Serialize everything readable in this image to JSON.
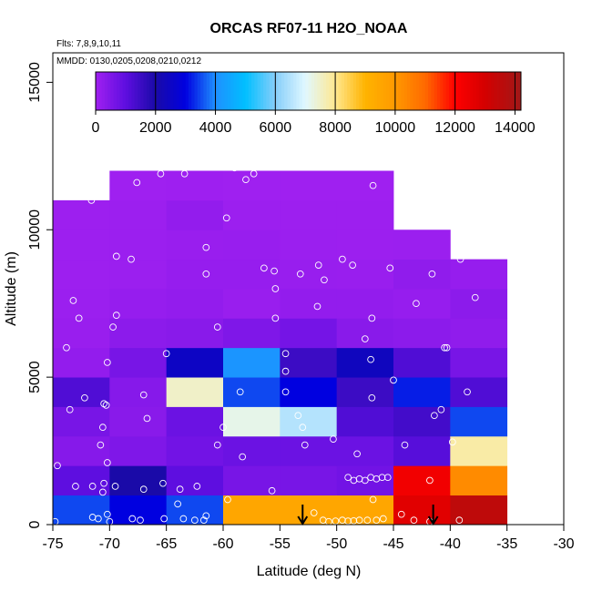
{
  "chart_data": {
    "type": "heatmap",
    "title": "ORCAS RF07-11 H2O_NOAA",
    "flights_note": "Flts: 7,8,9,10,11",
    "dates_note": "MMDD: 0130,0205,0208,0210,0212",
    "xlabel": "Latitude (deg N)",
    "ylabel": "Altitude (m)",
    "xlim": [
      -75,
      -30
    ],
    "ylim": [
      0,
      16000
    ],
    "x_ticks": [
      "-75",
      "-70",
      "-65",
      "-60",
      "-55",
      "-50",
      "-45",
      "-40",
      "-35",
      "-30"
    ],
    "y_ticks": [
      "0",
      "5000",
      "10000",
      "15000"
    ],
    "colorbar": {
      "range": [
        0,
        14200
      ],
      "ticks": [
        "0",
        "2000",
        "4000",
        "6000",
        "8000",
        "10000",
        "12000",
        "14000"
      ]
    },
    "bin_width_deg": 5,
    "bin_height_m": 1000,
    "x_bins": [
      -75,
      -70,
      -65,
      -60,
      -55,
      -50,
      -45,
      -40
    ],
    "columns": [
      [
        3500,
        1000,
        400,
        600,
        1200,
        200,
        100,
        80,
        50,
        50,
        50
      ],
      [
        3000,
        2000,
        500,
        350,
        400,
        600,
        300,
        150,
        80,
        80,
        60,
        20
      ],
      [
        3500,
        1000,
        700,
        800,
        7500,
        2500,
        350,
        200,
        150,
        100,
        200,
        30
      ],
      [
        9500,
        600,
        800,
        7200,
        3500,
        4100,
        500,
        100,
        150,
        120,
        60,
        20
      ],
      [
        9500,
        600,
        800,
        6500,
        3000,
        1500,
        650,
        200,
        120,
        80,
        50,
        20
      ],
      [
        9500,
        700,
        800,
        1200,
        1500,
        2400,
        350,
        200,
        110,
        60,
        50,
        10
      ],
      [
        12700,
        12300,
        1100,
        1400,
        3200,
        1200,
        300,
        150,
        250,
        80
      ],
      [
        13500,
        10300,
        7800,
        3500,
        1200,
        600,
        250,
        300,
        150
      ]
    ],
    "points": [
      [
        -74.8,
        100
      ],
      [
        -73,
        1300
      ],
      [
        -71.5,
        250
      ],
      [
        -71,
        200
      ],
      [
        -70.2,
        350
      ],
      [
        -70,
        100
      ],
      [
        -68,
        200
      ],
      [
        -67.3,
        150
      ],
      [
        -65.2,
        200
      ],
      [
        -64,
        700
      ],
      [
        -63.5,
        200
      ],
      [
        -62.5,
        150
      ],
      [
        -61.7,
        150
      ],
      [
        -61.5,
        300
      ],
      [
        -74.6,
        2000
      ],
      [
        -71.5,
        1300
      ],
      [
        -70.6,
        1100
      ],
      [
        -70.5,
        1400
      ],
      [
        -70.2,
        2100
      ],
      [
        -69.5,
        1300
      ],
      [
        -67,
        1200
      ],
      [
        -65.3,
        1400
      ],
      [
        -63.8,
        1200
      ],
      [
        -62.3,
        1300
      ],
      [
        -60.5,
        2700
      ],
      [
        -60,
        3300
      ],
      [
        -73.5,
        3900
      ],
      [
        -72.2,
        4300
      ],
      [
        -70.5,
        4100
      ],
      [
        -70.3,
        4050
      ],
      [
        -70.6,
        3300
      ],
      [
        -70.8,
        2700
      ],
      [
        -67,
        4400
      ],
      [
        -66.7,
        3600
      ],
      [
        -70.2,
        5500
      ],
      [
        -65,
        5800
      ],
      [
        -58.5,
        4500
      ],
      [
        -58.3,
        2300
      ],
      [
        -73.8,
        6000
      ],
      [
        -72.7,
        7000
      ],
      [
        -73.2,
        7600
      ],
      [
        -69.7,
        6700
      ],
      [
        -69.4,
        7100
      ],
      [
        -60.5,
        6700
      ],
      [
        -55.4,
        7000
      ],
      [
        -54.5,
        5800
      ],
      [
        -54.5,
        5200
      ],
      [
        -54.5,
        4500
      ],
      [
        -53.4,
        3700
      ],
      [
        -53,
        3300
      ],
      [
        -52.8,
        2700
      ],
      [
        -71.6,
        11000
      ],
      [
        -69.4,
        9100
      ],
      [
        -68.1,
        9000
      ],
      [
        -67.6,
        11600
      ],
      [
        -65.5,
        11900
      ],
      [
        -63.4,
        11900
      ],
      [
        -61.5,
        9400
      ],
      [
        -61.5,
        8500
      ],
      [
        -59,
        12100
      ],
      [
        -58,
        11700
      ],
      [
        -57.3,
        11900
      ],
      [
        -59.7,
        10400
      ],
      [
        -56.4,
        8700
      ],
      [
        -55.5,
        8600
      ],
      [
        -55.4,
        8000
      ],
      [
        -53.2,
        8500
      ],
      [
        -51.6,
        8800
      ],
      [
        -51.7,
        7400
      ],
      [
        -51.1,
        8300
      ],
      [
        -49.5,
        9000
      ],
      [
        -48.6,
        8800
      ],
      [
        -47.5,
        6300
      ],
      [
        -46.9,
        7000
      ],
      [
        -46.8,
        11500
      ],
      [
        -45.3,
        8700
      ],
      [
        -47,
        5600
      ],
      [
        -46.9,
        4300
      ],
      [
        -45,
        4900
      ],
      [
        -41.4,
        3700
      ],
      [
        -40.8,
        3900
      ],
      [
        -40.5,
        6000
      ],
      [
        -40.3,
        6000
      ],
      [
        -41.6,
        8500
      ],
      [
        -43,
        7500
      ],
      [
        -39.1,
        9000
      ],
      [
        -37.8,
        7700
      ],
      [
        -38.5,
        4500
      ],
      [
        -50.3,
        2900
      ],
      [
        -48.2,
        2400
      ],
      [
        -49,
        1600
      ],
      [
        -48.5,
        1500
      ],
      [
        -48,
        1550
      ],
      [
        -47.5,
        1500
      ],
      [
        -47,
        1600
      ],
      [
        -46.5,
        1550
      ],
      [
        -46,
        1600
      ],
      [
        -45.5,
        1600
      ],
      [
        -44,
        2700
      ],
      [
        -41.8,
        1500
      ],
      [
        -39.8,
        2800
      ],
      [
        -52,
        400
      ],
      [
        -51.2,
        150
      ],
      [
        -50.7,
        100
      ],
      [
        -50.1,
        120
      ],
      [
        -49.5,
        150
      ],
      [
        -49,
        120
      ],
      [
        -48.5,
        130
      ],
      [
        -48,
        150
      ],
      [
        -47.3,
        150
      ],
      [
        -46.8,
        850
      ],
      [
        -46.5,
        150
      ],
      [
        -45.9,
        200
      ],
      [
        -44.3,
        350
      ],
      [
        -43.2,
        150
      ],
      [
        -41.8,
        100
      ],
      [
        -39.2,
        150
      ],
      [
        -59.6,
        850
      ],
      [
        -55.7,
        1150
      ]
    ],
    "markers": [
      -53,
      -41.5
    ]
  }
}
